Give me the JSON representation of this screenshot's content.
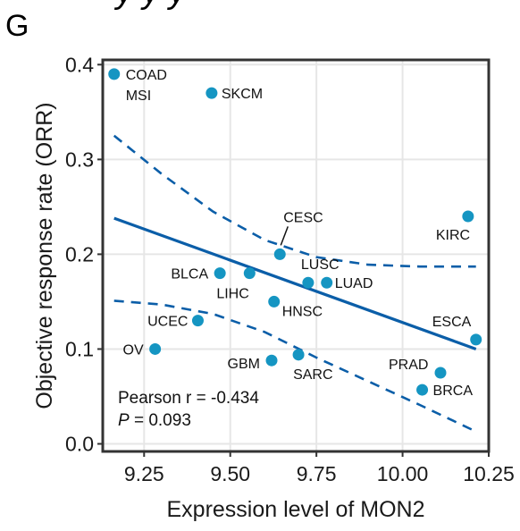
{
  "panel_letter": "G",
  "header_cropped_text": "y y y",
  "colors": {
    "point": "#1595c2",
    "line": "#0b5ea8",
    "grid": "#e6e6e6",
    "frame": "#333333"
  },
  "chart_data": {
    "type": "scatter",
    "title": "",
    "xlabel": "Expression level of MON2",
    "ylabel": "Objective response rate (ORR)",
    "xlim": [
      9.13,
      10.25
    ],
    "ylim": [
      -0.008,
      0.405
    ],
    "xticks": [
      9.25,
      9.5,
      9.75,
      10.0,
      10.25
    ],
    "xtick_labels": [
      "9.25",
      "9.50",
      "9.75",
      "10.00",
      "10.25"
    ],
    "yticks": [
      0.0,
      0.1,
      0.2,
      0.3,
      0.4
    ],
    "ytick_labels": [
      "0.0",
      "0.1",
      "0.2",
      "0.3",
      "0.4"
    ],
    "grid": true,
    "points": [
      {
        "label": "COAD\nMSI",
        "x": 9.163,
        "y": 0.39
      },
      {
        "label": "SKCM",
        "x": 9.446,
        "y": 0.37
      },
      {
        "label": "CESC",
        "x": 9.644,
        "y": 0.2
      },
      {
        "label": "KIRC",
        "x": 10.19,
        "y": 0.24
      },
      {
        "label": "BLCA",
        "x": 9.47,
        "y": 0.18
      },
      {
        "label": "LIHC",
        "x": 9.556,
        "y": 0.18
      },
      {
        "label": "LUSC",
        "x": 9.726,
        "y": 0.17
      },
      {
        "label": "LUAD",
        "x": 9.78,
        "y": 0.17
      },
      {
        "label": "HNSC",
        "x": 9.627,
        "y": 0.15
      },
      {
        "label": "UCEC",
        "x": 9.406,
        "y": 0.13
      },
      {
        "label": "ESCA",
        "x": 10.213,
        "y": 0.11
      },
      {
        "label": "OV",
        "x": 9.282,
        "y": 0.1
      },
      {
        "label": "GBM",
        "x": 9.62,
        "y": 0.088
      },
      {
        "label": "SARC",
        "x": 9.698,
        "y": 0.094
      },
      {
        "label": "PRAD",
        "x": 10.11,
        "y": 0.075
      },
      {
        "label": "BRCA",
        "x": 10.057,
        "y": 0.057
      }
    ],
    "regression": {
      "x": [
        9.163,
        10.213
      ],
      "y": [
        0.238,
        0.1
      ]
    },
    "ci_upper": {
      "x": [
        9.163,
        9.3,
        9.45,
        9.6,
        9.75,
        9.9,
        10.05,
        10.213
      ],
      "y": [
        0.325,
        0.285,
        0.245,
        0.215,
        0.197,
        0.189,
        0.187,
        0.187
      ]
    },
    "ci_lower": {
      "x": [
        9.163,
        9.3,
        9.45,
        9.6,
        9.75,
        9.9,
        10.05,
        10.213
      ],
      "y": [
        0.151,
        0.147,
        0.137,
        0.118,
        0.091,
        0.066,
        0.041,
        0.013
      ]
    },
    "annotation": {
      "pearson": "Pearson r = -0.434",
      "p_symbol": "P",
      "p_rest": " = 0.093"
    }
  }
}
